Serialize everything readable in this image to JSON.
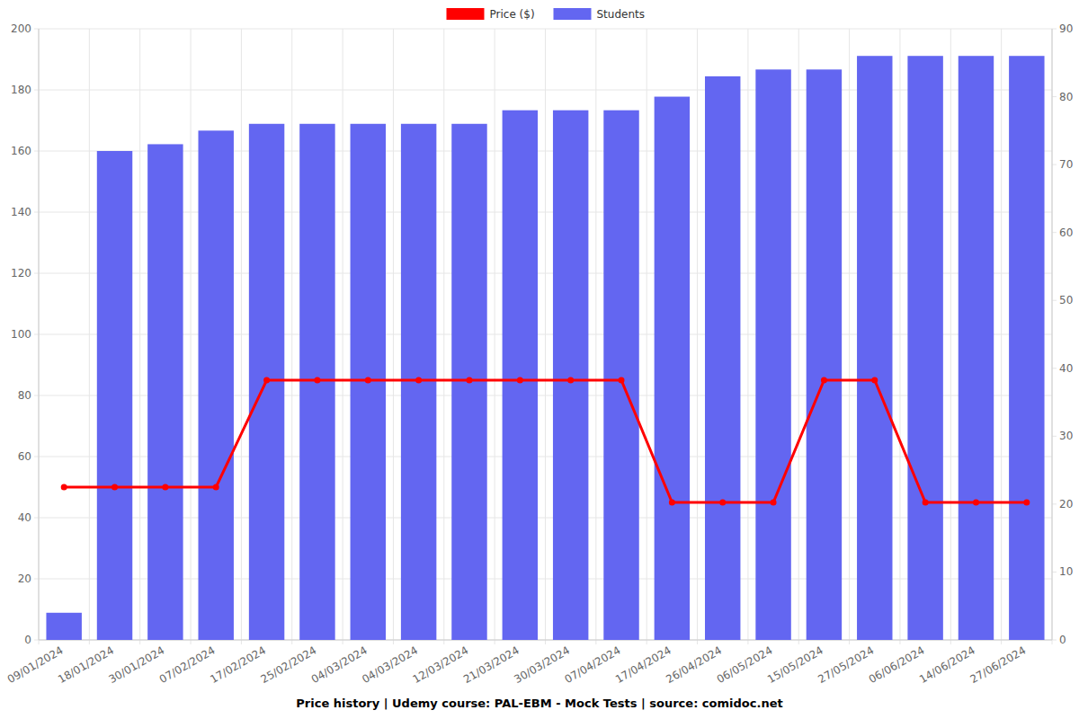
{
  "chart_data": {
    "type": "bar",
    "title": "Price history | Udemy course: PAL-EBM - Mock Tests | source: comidoc.net",
    "categories": [
      "09/01/2024",
      "18/01/2024",
      "30/01/2024",
      "07/02/2024",
      "17/02/2024",
      "25/02/2024",
      "04/03/2024",
      "04/03/2024",
      "12/03/2024",
      "21/03/2024",
      "30/03/2024",
      "07/04/2024",
      "17/04/2024",
      "26/04/2024",
      "06/05/2024",
      "15/05/2024",
      "27/05/2024",
      "06/06/2024",
      "14/06/2024",
      "27/06/2024"
    ],
    "series": [
      {
        "name": "Price ($)",
        "type": "line",
        "color": "#ff0000",
        "marker": "circle",
        "line_style": "solid",
        "values": [
          50,
          50,
          50,
          50,
          85,
          85,
          85,
          85,
          85,
          85,
          85,
          85,
          45,
          45,
          45,
          85,
          85,
          45,
          45,
          45
        ]
      },
      {
        "name": "Students",
        "type": "bar",
        "color": "#6366f1",
        "axis": "y2",
        "values": [
          4,
          72,
          73,
          75,
          76,
          76,
          76,
          76,
          76,
          78,
          78,
          78,
          80,
          83,
          84,
          84,
          86,
          86,
          86,
          86
        ]
      }
    ],
    "ylim": [
      0,
      200
    ],
    "yticks": [
      0,
      20,
      40,
      60,
      80,
      100,
      120,
      140,
      160,
      180,
      200
    ],
    "y2lim": [
      0,
      90
    ],
    "y2ticks": [
      0,
      10,
      20,
      30,
      40,
      50,
      60,
      70,
      80,
      90
    ],
    "grid": true,
    "legend": "top"
  }
}
